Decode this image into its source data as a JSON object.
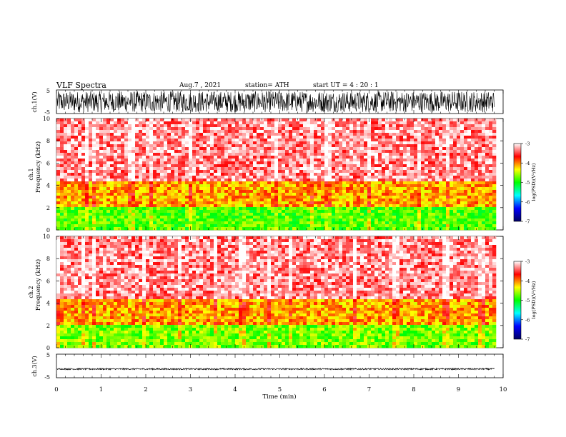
{
  "header": {
    "title": "VLF  Spectra",
    "date": "Aug.7   , 2021",
    "station": "station= ATH",
    "start": "start  UT  =    4   : 20 : 1"
  },
  "chart_data": [
    {
      "type": "line",
      "panel": "ch1-waveform",
      "ylabel": "ch.1(V)",
      "ylim": [
        -5,
        5
      ],
      "yticks": [
        "5",
        "-5"
      ],
      "xlim": [
        0,
        10
      ],
      "trace_color": "#000000",
      "amplitude_range": [
        -4.5,
        4.5
      ]
    },
    {
      "type": "heatmap",
      "panel": "ch1-spectrogram",
      "ylabel_channel": "ch.1",
      "ylabel": "Frequency  (kHz)",
      "ylim": [
        0,
        10
      ],
      "yticks": [
        "0",
        "2",
        "4",
        "6",
        "8",
        "10"
      ],
      "xlim": [
        0,
        9.8
      ],
      "colorbar": {
        "label": "log(PSD)(V²/Hz)",
        "range": [
          -7,
          -3
        ],
        "ticks": [
          "-3",
          "-4",
          "-5",
          "-6",
          "-7"
        ],
        "colors": [
          "#000060",
          "#0000ff",
          "#00ffff",
          "#00ff00",
          "#ffff00",
          "#ff0000",
          "#ffffff"
        ]
      },
      "bands": [
        {
          "f_range": [
            0,
            2
          ],
          "level": -4.8
        },
        {
          "f_range": [
            2,
            4.3
          ],
          "level": -4.1
        },
        {
          "f_range": [
            4.3,
            10
          ],
          "level": -3.3
        }
      ]
    },
    {
      "type": "heatmap",
      "panel": "ch2-spectrogram",
      "ylabel_channel": "ch.2",
      "ylabel": "Frequency  (kHz)",
      "ylim": [
        0,
        10
      ],
      "yticks": [
        "0",
        "2",
        "4",
        "6",
        "8",
        "10"
      ],
      "xlim": [
        0,
        9.8
      ],
      "colorbar": {
        "label": "log(PSD)(V²/Hz)",
        "range": [
          -7,
          -3
        ],
        "ticks": [
          "-3",
          "-4",
          "-5",
          "-6",
          "-7"
        ],
        "colors": [
          "#000060",
          "#0000ff",
          "#00ffff",
          "#00ff00",
          "#ffff00",
          "#ff0000",
          "#ffffff"
        ]
      },
      "bands": [
        {
          "f_range": [
            0,
            2
          ],
          "level": -4.7
        },
        {
          "f_range": [
            2,
            4.3
          ],
          "level": -4.1
        },
        {
          "f_range": [
            4.3,
            10
          ],
          "level": -3.3
        }
      ]
    },
    {
      "type": "line",
      "panel": "ch3-waveform",
      "ylabel": "ch.3(V)",
      "ylim": [
        -5,
        5
      ],
      "yticks": [
        "5",
        "-5"
      ],
      "xlim": [
        0,
        10
      ],
      "xlabel": "Time  (min)",
      "xticks": [
        "0",
        "1",
        "2",
        "3",
        "4",
        "5",
        "6",
        "7",
        "8",
        "9",
        "10"
      ],
      "trace_color": "#000000",
      "amplitude_range": [
        -1.6,
        -1.0
      ]
    }
  ]
}
